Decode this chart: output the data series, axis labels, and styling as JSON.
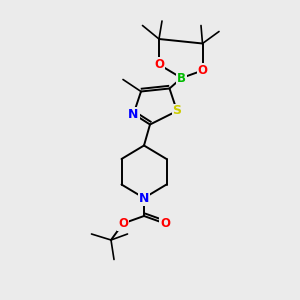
{
  "bg_color": "#ebebeb",
  "bond_color": "#000000",
  "atom_colors": {
    "N": "#0000ff",
    "O": "#ff0000",
    "S": "#cccc00",
    "B": "#00bb00",
    "C": "#000000"
  }
}
